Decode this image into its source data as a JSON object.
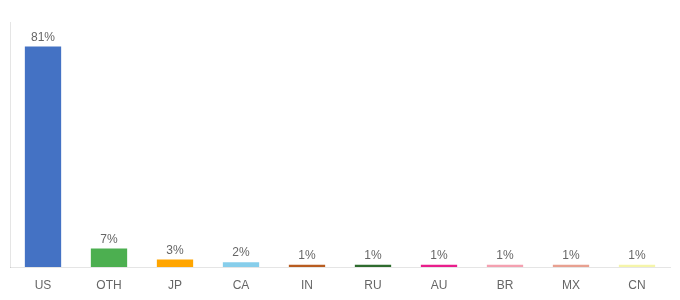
{
  "chart_data": {
    "type": "bar",
    "categories": [
      "US",
      "OTH",
      "JP",
      "CA",
      "IN",
      "RU",
      "AU",
      "BR",
      "MX",
      "CN"
    ],
    "values": [
      81,
      7,
      3,
      2,
      1,
      1,
      1,
      1,
      1,
      1
    ],
    "value_labels": [
      "81%",
      "7%",
      "3%",
      "2%",
      "1%",
      "1%",
      "1%",
      "1%",
      "1%",
      "1%"
    ],
    "data_labels": true,
    "colors": [
      "#4472c4",
      "#4CAF50",
      "#FFA500",
      "#87CEEB",
      "#b85c20",
      "#2E6B2E",
      "#E91E8C",
      "#F4A0B0",
      "#E8A090",
      "#F5F5AA"
    ],
    "ylim": [
      0,
      90
    ],
    "grid": false,
    "tick_labels": "x"
  }
}
